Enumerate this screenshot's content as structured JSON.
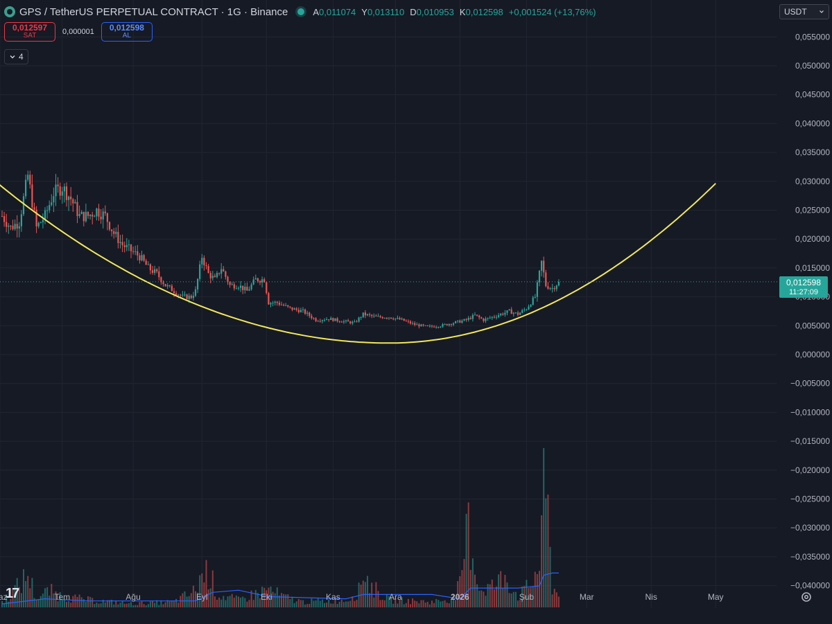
{
  "header": {
    "symbol": "GPS / TetherUS PERPETUAL CONTRACT · 1G · Binance",
    "ohlc": [
      {
        "k": "A",
        "v": "0,011074"
      },
      {
        "k": "Y",
        "v": "0,013110"
      },
      {
        "k": "D",
        "v": "0,010953"
      },
      {
        "k": "K",
        "v": "0,012598"
      }
    ],
    "change": "+0,001524 (+13,76%)"
  },
  "trade": {
    "sell_price": "0,012597",
    "sell_label": "SAT",
    "spread": "0,000001",
    "buy_price": "0,012598",
    "buy_label": "AL"
  },
  "indicators_toggle": "4",
  "currency": "USDT",
  "last_price_label": {
    "price": "0,012598",
    "countdown": "11:27:09"
  },
  "colors": {
    "background": "#161a25",
    "up": "#26a69a",
    "down": "#ef5350",
    "curve": "#f2e85b",
    "volume_ma": "#2962ff"
  },
  "chart_data": {
    "type": "candlestick",
    "interval": "1G",
    "y_axis": {
      "ylim": [
        -0.0435,
        0.0575
      ],
      "ticks": [
        "0,055000",
        "0,050000",
        "0,045000",
        "0,040000",
        "0,035000",
        "0,030000",
        "0,025000",
        "0,020000",
        "0,015000",
        "0,010000",
        "0,005000",
        "0,000000",
        "−0,005000",
        "−0,010000",
        "−0,015000",
        "−0,020000",
        "−0,025000",
        "−0,030000",
        "−0,035000",
        "−0,040000"
      ],
      "tick_values": [
        0.055,
        0.05,
        0.045,
        0.04,
        0.035,
        0.03,
        0.025,
        0.02,
        0.015,
        0.01,
        0.005,
        0,
        -0.005,
        -0.01,
        -0.015,
        -0.02,
        -0.025,
        -0.03,
        -0.035,
        -0.04
      ]
    },
    "x_axis": {
      "ticks": [
        "Haz",
        "Tem",
        "Ağu",
        "Eyl",
        "Eki",
        "Kas",
        "Ara",
        "2026",
        "Şub",
        "Mar",
        "Nis",
        "May"
      ],
      "tick_days": [
        -1,
        28,
        61,
        93,
        123,
        154,
        183,
        213,
        244,
        272,
        302,
        332
      ],
      "bold": [
        "2026"
      ]
    },
    "last_price": 0.012598,
    "price_path": [
      [
        0,
        0.024
      ],
      [
        4,
        0.022
      ],
      [
        8,
        0.023
      ],
      [
        12,
        0.031
      ],
      [
        16,
        0.022
      ],
      [
        20,
        0.024
      ],
      [
        24,
        0.028
      ],
      [
        28,
        0.029
      ],
      [
        32,
        0.027
      ],
      [
        36,
        0.024
      ],
      [
        40,
        0.024
      ],
      [
        44,
        0.025
      ],
      [
        48,
        0.024
      ],
      [
        52,
        0.021
      ],
      [
        56,
        0.019
      ],
      [
        60,
        0.018
      ],
      [
        64,
        0.017
      ],
      [
        68,
        0.015
      ],
      [
        72,
        0.014
      ],
      [
        76,
        0.012
      ],
      [
        80,
        0.011
      ],
      [
        84,
        0.01
      ],
      [
        88,
        0.01
      ],
      [
        90,
        0.011
      ],
      [
        93,
        0.017
      ],
      [
        96,
        0.014
      ],
      [
        99,
        0.013
      ],
      [
        102,
        0.015
      ],
      [
        106,
        0.012
      ],
      [
        110,
        0.012
      ],
      [
        114,
        0.011
      ],
      [
        118,
        0.013
      ],
      [
        122,
        0.013
      ],
      [
        124,
        0.009
      ],
      [
        128,
        0.009
      ],
      [
        134,
        0.008
      ],
      [
        140,
        0.0075
      ],
      [
        146,
        0.006
      ],
      [
        152,
        0.0062
      ],
      [
        158,
        0.0058
      ],
      [
        164,
        0.0055
      ],
      [
        168,
        0.007
      ],
      [
        174,
        0.0065
      ],
      [
        180,
        0.0065
      ],
      [
        186,
        0.006
      ],
      [
        192,
        0.0052
      ],
      [
        198,
        0.0048
      ],
      [
        204,
        0.005
      ],
      [
        210,
        0.0055
      ],
      [
        216,
        0.006
      ],
      [
        220,
        0.0068
      ],
      [
        224,
        0.006
      ],
      [
        228,
        0.0065
      ],
      [
        232,
        0.007
      ],
      [
        236,
        0.0075
      ],
      [
        240,
        0.007
      ],
      [
        244,
        0.008
      ],
      [
        248,
        0.01
      ],
      [
        251,
        0.016
      ],
      [
        253,
        0.012
      ],
      [
        256,
        0.0115
      ],
      [
        259,
        0.0126
      ]
    ],
    "bowl_curve": {
      "start": [
        -8,
        0.0315
      ],
      "bottom": [
        180,
        0.002
      ],
      "end": [
        333,
        0.03
      ]
    },
    "volume_path": [
      [
        0,
        0.15
      ],
      [
        8,
        0.6
      ],
      [
        12,
        0.9
      ],
      [
        16,
        0.25
      ],
      [
        22,
        0.45
      ],
      [
        28,
        0.3
      ],
      [
        40,
        0.2
      ],
      [
        60,
        0.1
      ],
      [
        80,
        0.15
      ],
      [
        90,
        0.45
      ],
      [
        92,
        0.8
      ],
      [
        96,
        1.0
      ],
      [
        100,
        0.35
      ],
      [
        110,
        0.2
      ],
      [
        124,
        0.5
      ],
      [
        130,
        0.3
      ],
      [
        140,
        0.15
      ],
      [
        160,
        0.2
      ],
      [
        166,
        0.45
      ],
      [
        168,
        1.0
      ],
      [
        172,
        0.55
      ],
      [
        180,
        0.2
      ],
      [
        200,
        0.15
      ],
      [
        210,
        0.25
      ],
      [
        214,
        0.7
      ],
      [
        216,
        2.2
      ],
      [
        218,
        1.9
      ],
      [
        222,
        0.5
      ],
      [
        230,
        0.6
      ],
      [
        234,
        0.9
      ],
      [
        240,
        0.3
      ],
      [
        246,
        0.6
      ],
      [
        250,
        1.2
      ],
      [
        252,
        3.5
      ],
      [
        254,
        2.4
      ],
      [
        256,
        0.6
      ],
      [
        259,
        0.3
      ]
    ],
    "volume_ma_path": [
      [
        0,
        0.08
      ],
      [
        20,
        0.2
      ],
      [
        40,
        0.15
      ],
      [
        90,
        0.15
      ],
      [
        98,
        0.35
      ],
      [
        110,
        0.4
      ],
      [
        124,
        0.25
      ],
      [
        160,
        0.2
      ],
      [
        168,
        0.3
      ],
      [
        200,
        0.3
      ],
      [
        213,
        0.2
      ],
      [
        218,
        0.45
      ],
      [
        240,
        0.45
      ],
      [
        250,
        0.5
      ],
      [
        252,
        0.75
      ],
      [
        256,
        0.8
      ],
      [
        259,
        0.8
      ]
    ]
  }
}
